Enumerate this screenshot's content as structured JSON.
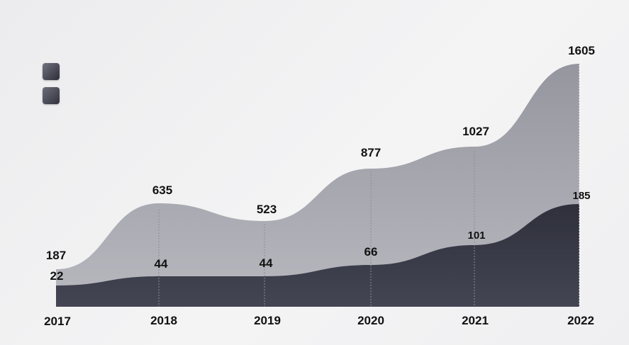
{
  "chart_data": {
    "type": "area",
    "categories": [
      "2017",
      "2018",
      "2019",
      "2020",
      "2021",
      "2022"
    ],
    "series": [
      {
        "values": [
          187,
          635,
          523,
          877,
          1027,
          1605
        ],
        "color": "#a3a4ab"
      },
      {
        "values": [
          22,
          44,
          44,
          66,
          101,
          185
        ],
        "color": "#3a3b48"
      }
    ],
    "legend_position": "top-left",
    "grid": false
  }
}
